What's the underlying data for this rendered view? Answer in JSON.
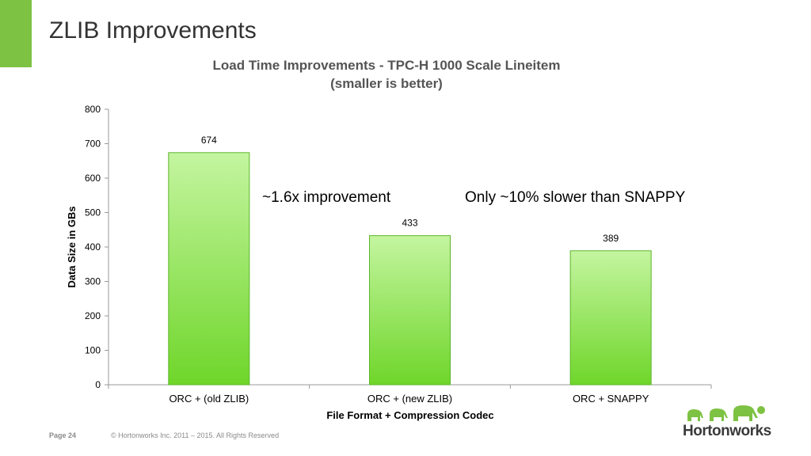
{
  "slide": {
    "title": "ZLIB Improvements",
    "accent_color": "#7dc242"
  },
  "footer": {
    "page_label": "Page 24",
    "copyright": "© Hortonworks Inc. 2011 – 2015. All Rights Reserved"
  },
  "logo": {
    "text": "Hortonworks",
    "icon": "elephant-herd-icon"
  },
  "chart_data": {
    "type": "bar",
    "title": "Load Time Improvements - TPC-H 1000 Scale Lineitem",
    "subtitle": "(smaller is better)",
    "xlabel": "File Format + Compression Codec",
    "ylabel": "Data Size in GBs",
    "categories": [
      "ORC + (old ZLIB)",
      "ORC + (new ZLIB)",
      "ORC + SNAPPY"
    ],
    "values": [
      674,
      433,
      389
    ],
    "data_labels": [
      "674",
      "433",
      "389"
    ],
    "ylim": [
      0,
      800
    ],
    "yticks": [
      0,
      100,
      200,
      300,
      400,
      500,
      600,
      700,
      800
    ],
    "grid": false,
    "legend": "none",
    "bar_color_top": "#c4f5a0",
    "bar_color_bottom": "#6fd62a",
    "bar_border": "#5cb52a",
    "annotations": [
      "~1.6x improvement",
      "Only ~10% slower than SNAPPY"
    ]
  }
}
